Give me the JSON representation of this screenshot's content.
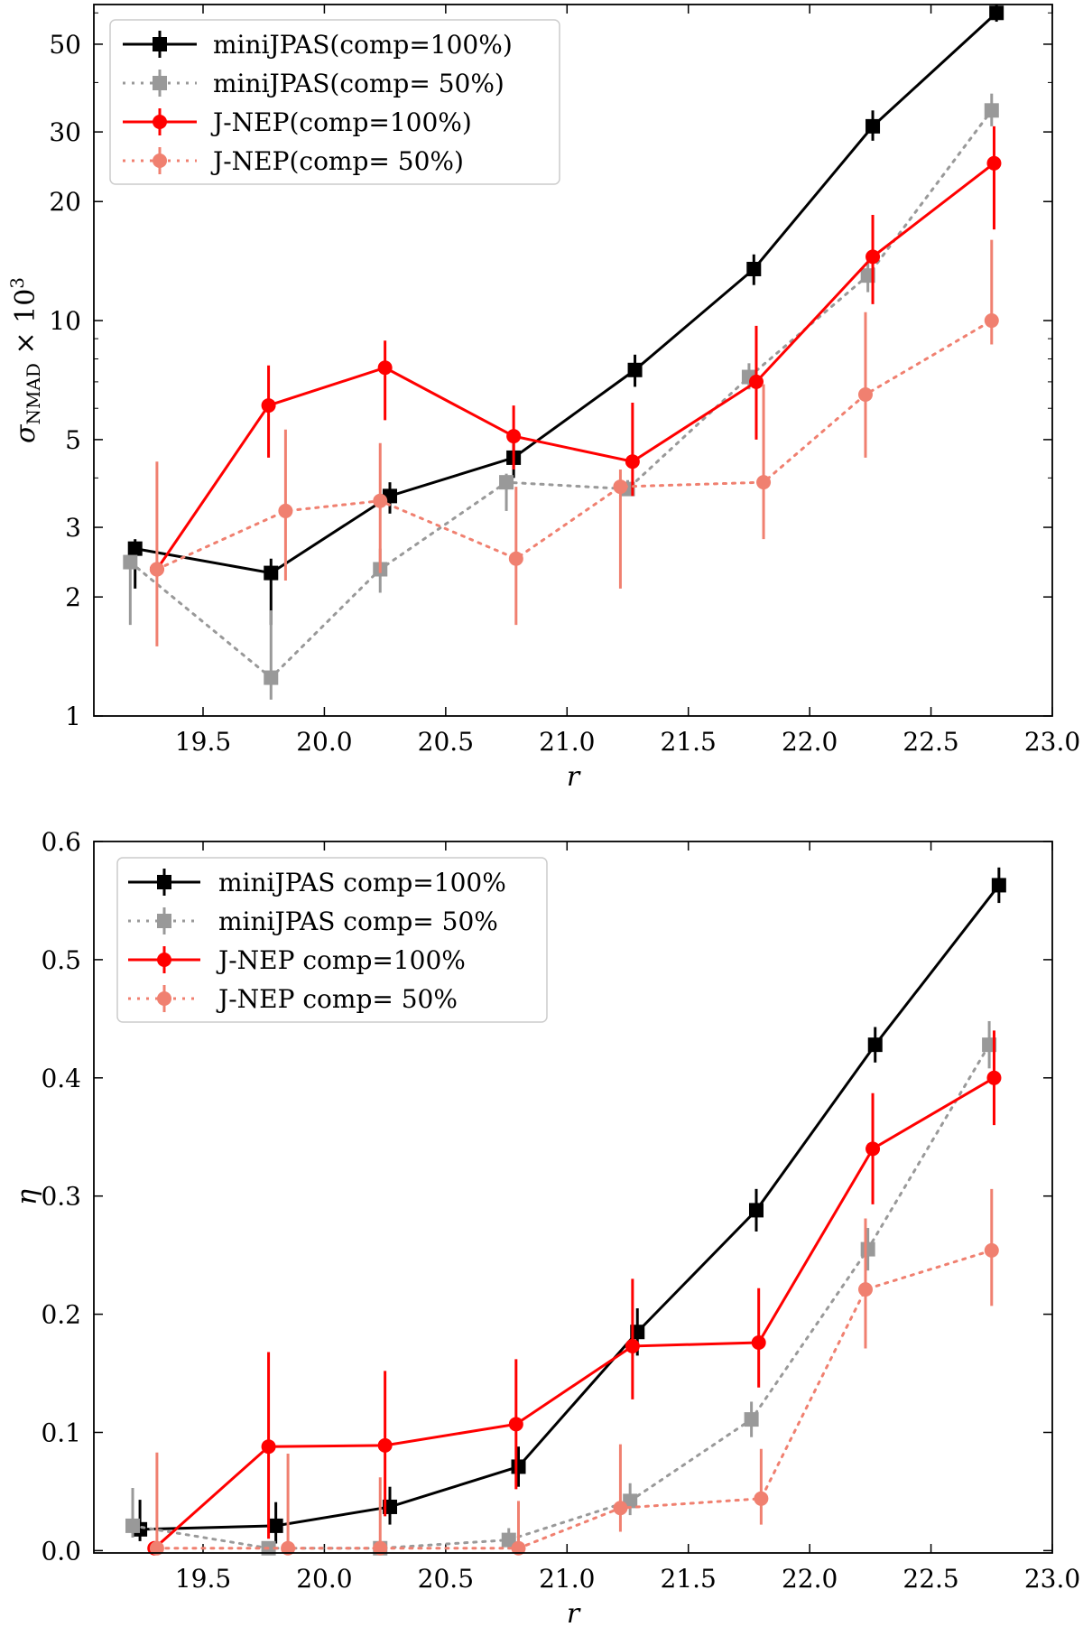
{
  "chart_data": [
    {
      "type": "line",
      "title": "",
      "xlabel": "r",
      "ylabel": "σ",
      "ylabel_sub": "NMAD",
      "ylabel_suffix": " × 10",
      "ylabel_sup": "3",
      "yscale": "log",
      "xlim": [
        19.05,
        23.0
      ],
      "ylim": [
        1,
        63
      ],
      "xticks": [
        "19.5",
        "20.0",
        "20.5",
        "21.0",
        "21.5",
        "22.0",
        "22.5",
        "23.0"
      ],
      "xtick_values": [
        19.5,
        20.0,
        20.5,
        21.0,
        21.5,
        22.0,
        22.5,
        23.0
      ],
      "yticks": [
        "1",
        "2",
        "3",
        "5",
        "10",
        "20",
        "30",
        "50"
      ],
      "ytick_values": [
        1,
        2,
        3,
        5,
        10,
        20,
        30,
        50
      ],
      "legend_position": "upper-left",
      "series": [
        {
          "name": "miniJPAS(comp=100%)",
          "color": "#000000",
          "linestyle": "solid",
          "marker": "square",
          "x": [
            19.22,
            19.78,
            20.27,
            20.78,
            21.28,
            21.77,
            22.26,
            22.77
          ],
          "values": [
            2.65,
            2.3,
            3.6,
            4.5,
            7.5,
            13.5,
            31.0,
            60.0
          ],
          "err_low": [
            0.55,
            0.6,
            0.35,
            0.5,
            0.7,
            1.2,
            2.5,
            3.0
          ],
          "err_high": [
            0.15,
            0.2,
            0.3,
            0.5,
            0.7,
            1.2,
            3.0,
            3.0
          ]
        },
        {
          "name": "miniJPAS(comp= 50%)",
          "color": "#999999",
          "linestyle": "dotted",
          "marker": "square",
          "x": [
            19.2,
            19.78,
            20.23,
            20.75,
            21.25,
            21.75,
            22.24,
            22.75
          ],
          "values": [
            2.45,
            1.25,
            2.35,
            3.9,
            3.75,
            7.2,
            13.0,
            34.0
          ],
          "err_low": [
            0.75,
            0.15,
            0.3,
            0.6,
            0.15,
            0.5,
            1.2,
            3.0
          ],
          "err_high": [
            0.1,
            0.6,
            0.3,
            0.2,
            0.2,
            0.6,
            1.5,
            3.5
          ]
        },
        {
          "name": "J-NEP(comp=100%)",
          "color": "#ff0000",
          "linestyle": "solid",
          "marker": "circle",
          "x": [
            19.31,
            19.77,
            20.25,
            20.78,
            21.27,
            21.78,
            22.26,
            22.76
          ],
          "values": [
            2.35,
            6.1,
            7.6,
            5.1,
            4.4,
            7.0,
            14.5,
            25.0
          ],
          "err_low": [
            0.0,
            1.6,
            2.0,
            0.9,
            0.8,
            2.0,
            3.5,
            8.0
          ],
          "err_high": [
            0.0,
            1.6,
            1.3,
            1.0,
            1.8,
            2.7,
            4.0,
            6.0
          ]
        },
        {
          "name": "J-NEP(comp= 50%)",
          "color": "#f08070",
          "linestyle": "dotted",
          "marker": "circle",
          "x": [
            19.31,
            19.84,
            20.23,
            20.79,
            21.22,
            21.81,
            22.23,
            22.75
          ],
          "values": [
            2.35,
            3.3,
            3.5,
            2.5,
            3.8,
            3.9,
            6.5,
            10.0
          ],
          "err_low": [
            0.85,
            1.1,
            1.2,
            0.8,
            1.7,
            1.1,
            2.0,
            1.3
          ],
          "err_high": [
            2.05,
            2.0,
            1.4,
            1.3,
            0.4,
            3.0,
            4.0,
            6.0
          ]
        }
      ]
    },
    {
      "type": "line",
      "title": "",
      "xlabel": "r",
      "ylabel": "η",
      "yscale": "linear",
      "xlim": [
        19.05,
        23.0
      ],
      "ylim": [
        -0.002,
        0.6
      ],
      "xticks": [
        "19.5",
        "20.0",
        "20.5",
        "21.0",
        "21.5",
        "22.0",
        "22.5",
        "23.0"
      ],
      "xtick_values": [
        19.5,
        20.0,
        20.5,
        21.0,
        21.5,
        22.0,
        22.5,
        23.0
      ],
      "yticks": [
        "0.0",
        "0.1",
        "0.2",
        "0.3",
        "0.4",
        "0.5",
        "0.6"
      ],
      "ytick_values": [
        0.0,
        0.1,
        0.2,
        0.3,
        0.4,
        0.5,
        0.6
      ],
      "legend_position": "upper-left",
      "series": [
        {
          "name": "miniJPAS comp=100%",
          "color": "#000000",
          "linestyle": "solid",
          "marker": "square",
          "x": [
            19.24,
            19.8,
            20.27,
            20.8,
            21.29,
            21.78,
            22.27,
            22.78
          ],
          "values": [
            0.018,
            0.021,
            0.037,
            0.071,
            0.185,
            0.288,
            0.428,
            0.563
          ],
          "err_low": [
            0.01,
            0.015,
            0.015,
            0.017,
            0.02,
            0.018,
            0.015,
            0.015
          ],
          "err_high": [
            0.025,
            0.02,
            0.017,
            0.017,
            0.02,
            0.018,
            0.015,
            0.015
          ]
        },
        {
          "name": "miniJPAS comp= 50%",
          "color": "#999999",
          "linestyle": "dotted",
          "marker": "square",
          "x": [
            19.21,
            19.77,
            20.23,
            20.76,
            21.26,
            21.76,
            22.24,
            22.74
          ],
          "values": [
            0.021,
            0.002,
            0.002,
            0.009,
            0.042,
            0.111,
            0.255,
            0.428
          ],
          "err_low": [
            0.01,
            0.002,
            0.002,
            0.008,
            0.012,
            0.015,
            0.018,
            0.02
          ],
          "err_high": [
            0.032,
            0.004,
            0.004,
            0.01,
            0.015,
            0.015,
            0.018,
            0.02
          ]
        },
        {
          "name": "J-NEP comp=100%",
          "color": "#ff0000",
          "linestyle": "solid",
          "marker": "circle",
          "x": [
            19.3,
            19.77,
            20.25,
            20.79,
            21.27,
            21.79,
            22.26,
            22.76
          ],
          "values": [
            0.002,
            0.088,
            0.089,
            0.107,
            0.173,
            0.176,
            0.34,
            0.4
          ],
          "err_low": [
            0.0,
            0.078,
            0.06,
            0.055,
            0.045,
            0.038,
            0.047,
            0.04
          ],
          "err_high": [
            0.0,
            0.08,
            0.063,
            0.055,
            0.057,
            0.046,
            0.047,
            0.04
          ]
        },
        {
          "name": "J-NEP comp= 50%",
          "color": "#f08070",
          "linestyle": "dotted",
          "marker": "circle",
          "x": [
            19.31,
            19.85,
            20.23,
            20.8,
            21.22,
            21.8,
            22.23,
            22.75
          ],
          "values": [
            0.002,
            0.002,
            0.002,
            0.002,
            0.036,
            0.044,
            0.221,
            0.254
          ],
          "err_low": [
            0.002,
            0.002,
            0.002,
            0.002,
            0.02,
            0.022,
            0.05,
            0.047
          ],
          "err_high": [
            0.081,
            0.08,
            0.06,
            0.04,
            0.054,
            0.042,
            0.06,
            0.052
          ]
        }
      ]
    }
  ]
}
